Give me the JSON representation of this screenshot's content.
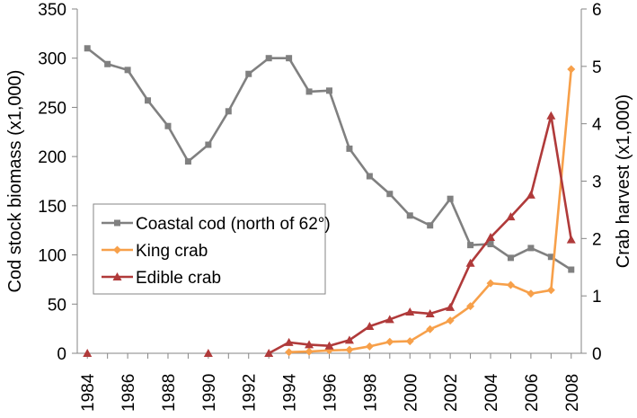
{
  "chart_data": {
    "type": "line",
    "title": "",
    "x": [
      1984,
      1985,
      1986,
      1987,
      1988,
      1989,
      1990,
      1991,
      1992,
      1993,
      1994,
      1995,
      1996,
      1997,
      1998,
      1999,
      2000,
      2001,
      2002,
      2003,
      2004,
      2005,
      2006,
      2007,
      2008
    ],
    "xticks": [
      1984,
      1986,
      1988,
      1990,
      1992,
      1994,
      1996,
      1998,
      2000,
      2002,
      2004,
      2006,
      2008
    ],
    "xlim": [
      1983.5,
      2008.5
    ],
    "ylabel_left": "Cod stock biomass (x1,000)",
    "ylabel_right": "Crab harvest (x1,000)",
    "ylim_left": [
      0,
      350
    ],
    "yticks_left": [
      0,
      50,
      100,
      150,
      200,
      250,
      300,
      350
    ],
    "ylim_right": [
      0,
      6
    ],
    "yticks_right": [
      0,
      1,
      2,
      3,
      4,
      5,
      6
    ],
    "grid": false,
    "legend": {
      "placement": "lower-left"
    },
    "series": [
      {
        "name": "Coastal cod (north of 62°)",
        "axis": "left",
        "color": "#808080",
        "marker": "square",
        "x": [
          1984,
          1985,
          1986,
          1987,
          1988,
          1989,
          1990,
          1991,
          1992,
          1993,
          1994,
          1995,
          1996,
          1997,
          1998,
          1999,
          2000,
          2001,
          2002,
          2003,
          2004,
          2005,
          2006,
          2007,
          2008
        ],
        "values": [
          310,
          294,
          288,
          257,
          231,
          195,
          212,
          246,
          284,
          300,
          300,
          266,
          267,
          208,
          180,
          162,
          140,
          130,
          157,
          110,
          111,
          97,
          107,
          98,
          85
        ]
      },
      {
        "name": "King crab",
        "axis": "right",
        "color": "#F7A04A",
        "marker": "diamond",
        "x": [
          1994,
          1995,
          1996,
          1997,
          1998,
          1999,
          2000,
          2001,
          2002,
          2003,
          2004,
          2005,
          2006,
          2007,
          2008
        ],
        "values": [
          0.02,
          0.03,
          0.05,
          0.06,
          0.12,
          0.2,
          0.21,
          0.42,
          0.57,
          0.82,
          1.22,
          1.19,
          1.04,
          1.1,
          4.95
        ]
      },
      {
        "name": "Edible crab",
        "axis": "right",
        "color": "#B03A3A",
        "marker": "triangle",
        "x": [
          1984,
          1990,
          1993,
          1994,
          1995,
          1996,
          1997,
          1998,
          1999,
          2000,
          2001,
          2002,
          2003,
          2004,
          2005,
          2006,
          2007,
          2008
        ],
        "values": [
          0,
          0,
          0,
          0.19,
          0.15,
          0.13,
          0.23,
          0.47,
          0.59,
          0.72,
          0.69,
          0.8,
          1.57,
          2.02,
          2.38,
          2.76,
          4.14,
          1.98
        ]
      }
    ]
  }
}
